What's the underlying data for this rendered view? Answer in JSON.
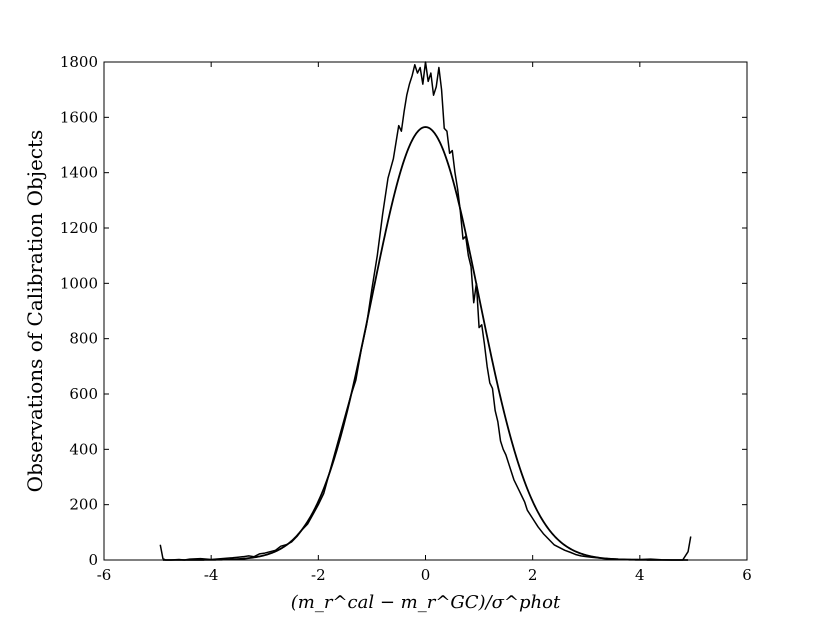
{
  "chart_data": {
    "type": "line",
    "title": "",
    "xlabel": "(m_r^cal − m_r^GC)/σ^phot",
    "ylabel": "Observations of Calibration Objects",
    "xlim": [
      -6,
      6
    ],
    "ylim": [
      0,
      1800
    ],
    "xticks": [
      "-6",
      "-4",
      "-2",
      "0",
      "2",
      "4",
      "6"
    ],
    "yticks": [
      "0",
      "200",
      "400",
      "600",
      "800",
      "1000",
      "1200",
      "1400",
      "1600",
      "1800"
    ],
    "grid": false,
    "legend": "none",
    "series": [
      {
        "style": "histogram",
        "color": "#000000",
        "x": [
          -4.95,
          -4.9,
          -4.85,
          -4.75,
          -4.6,
          -4.5,
          -4.4,
          -4.2,
          -4.0,
          -3.8,
          -3.6,
          -3.5,
          -3.4,
          -3.3,
          -3.2,
          -3.1,
          -3.0,
          -2.9,
          -2.8,
          -2.7,
          -2.6,
          -2.5,
          -2.4,
          -2.3,
          -2.2,
          -2.1,
          -2.0,
          -1.9,
          -1.8,
          -1.7,
          -1.6,
          -1.5,
          -1.4,
          -1.3,
          -1.2,
          -1.1,
          -1.0,
          -0.9,
          -0.8,
          -0.7,
          -0.6,
          -0.5,
          -0.45,
          -0.4,
          -0.35,
          -0.3,
          -0.25,
          -0.2,
          -0.15,
          -0.1,
          -0.05,
          0.0,
          0.05,
          0.1,
          0.15,
          0.2,
          0.25,
          0.3,
          0.35,
          0.4,
          0.45,
          0.5,
          0.55,
          0.6,
          0.65,
          0.7,
          0.75,
          0.8,
          0.85,
          0.9,
          0.95,
          1.0,
          1.05,
          1.1,
          1.15,
          1.2,
          1.25,
          1.3,
          1.35,
          1.4,
          1.45,
          1.5,
          1.55,
          1.6,
          1.65,
          1.7,
          1.75,
          1.8,
          1.85,
          1.9,
          2.0,
          2.1,
          2.2,
          2.3,
          2.4,
          2.5,
          2.6,
          2.7,
          2.8,
          2.9,
          3.0,
          3.1,
          3.2,
          3.3,
          3.4,
          3.5,
          3.6,
          3.8,
          4.0,
          4.2,
          4.4,
          4.6,
          4.8,
          4.9,
          4.95
        ],
        "values": [
          55,
          5,
          0,
          0,
          2,
          0,
          3,
          5,
          2,
          5,
          8,
          10,
          12,
          15,
          12,
          22,
          25,
          30,
          35,
          50,
          55,
          65,
          85,
          110,
          130,
          165,
          200,
          240,
          310,
          380,
          450,
          520,
          590,
          650,
          760,
          850,
          980,
          1100,
          1250,
          1380,
          1450,
          1570,
          1550,
          1620,
          1680,
          1720,
          1750,
          1790,
          1760,
          1780,
          1720,
          1800,
          1730,
          1760,
          1680,
          1710,
          1780,
          1700,
          1560,
          1550,
          1470,
          1480,
          1400,
          1340,
          1260,
          1160,
          1170,
          1100,
          1060,
          930,
          1000,
          840,
          850,
          780,
          700,
          640,
          620,
          540,
          500,
          430,
          400,
          380,
          350,
          320,
          290,
          270,
          250,
          230,
          210,
          180,
          150,
          120,
          95,
          75,
          55,
          45,
          35,
          28,
          20,
          15,
          12,
          10,
          8,
          6,
          5,
          4,
          3,
          2,
          2,
          3,
          1,
          0,
          0,
          30,
          85
        ]
      },
      {
        "style": "gaussian-fit",
        "color": "#000000",
        "amplitude": 1565,
        "mean": 0,
        "sigma": 1.0
      }
    ]
  }
}
